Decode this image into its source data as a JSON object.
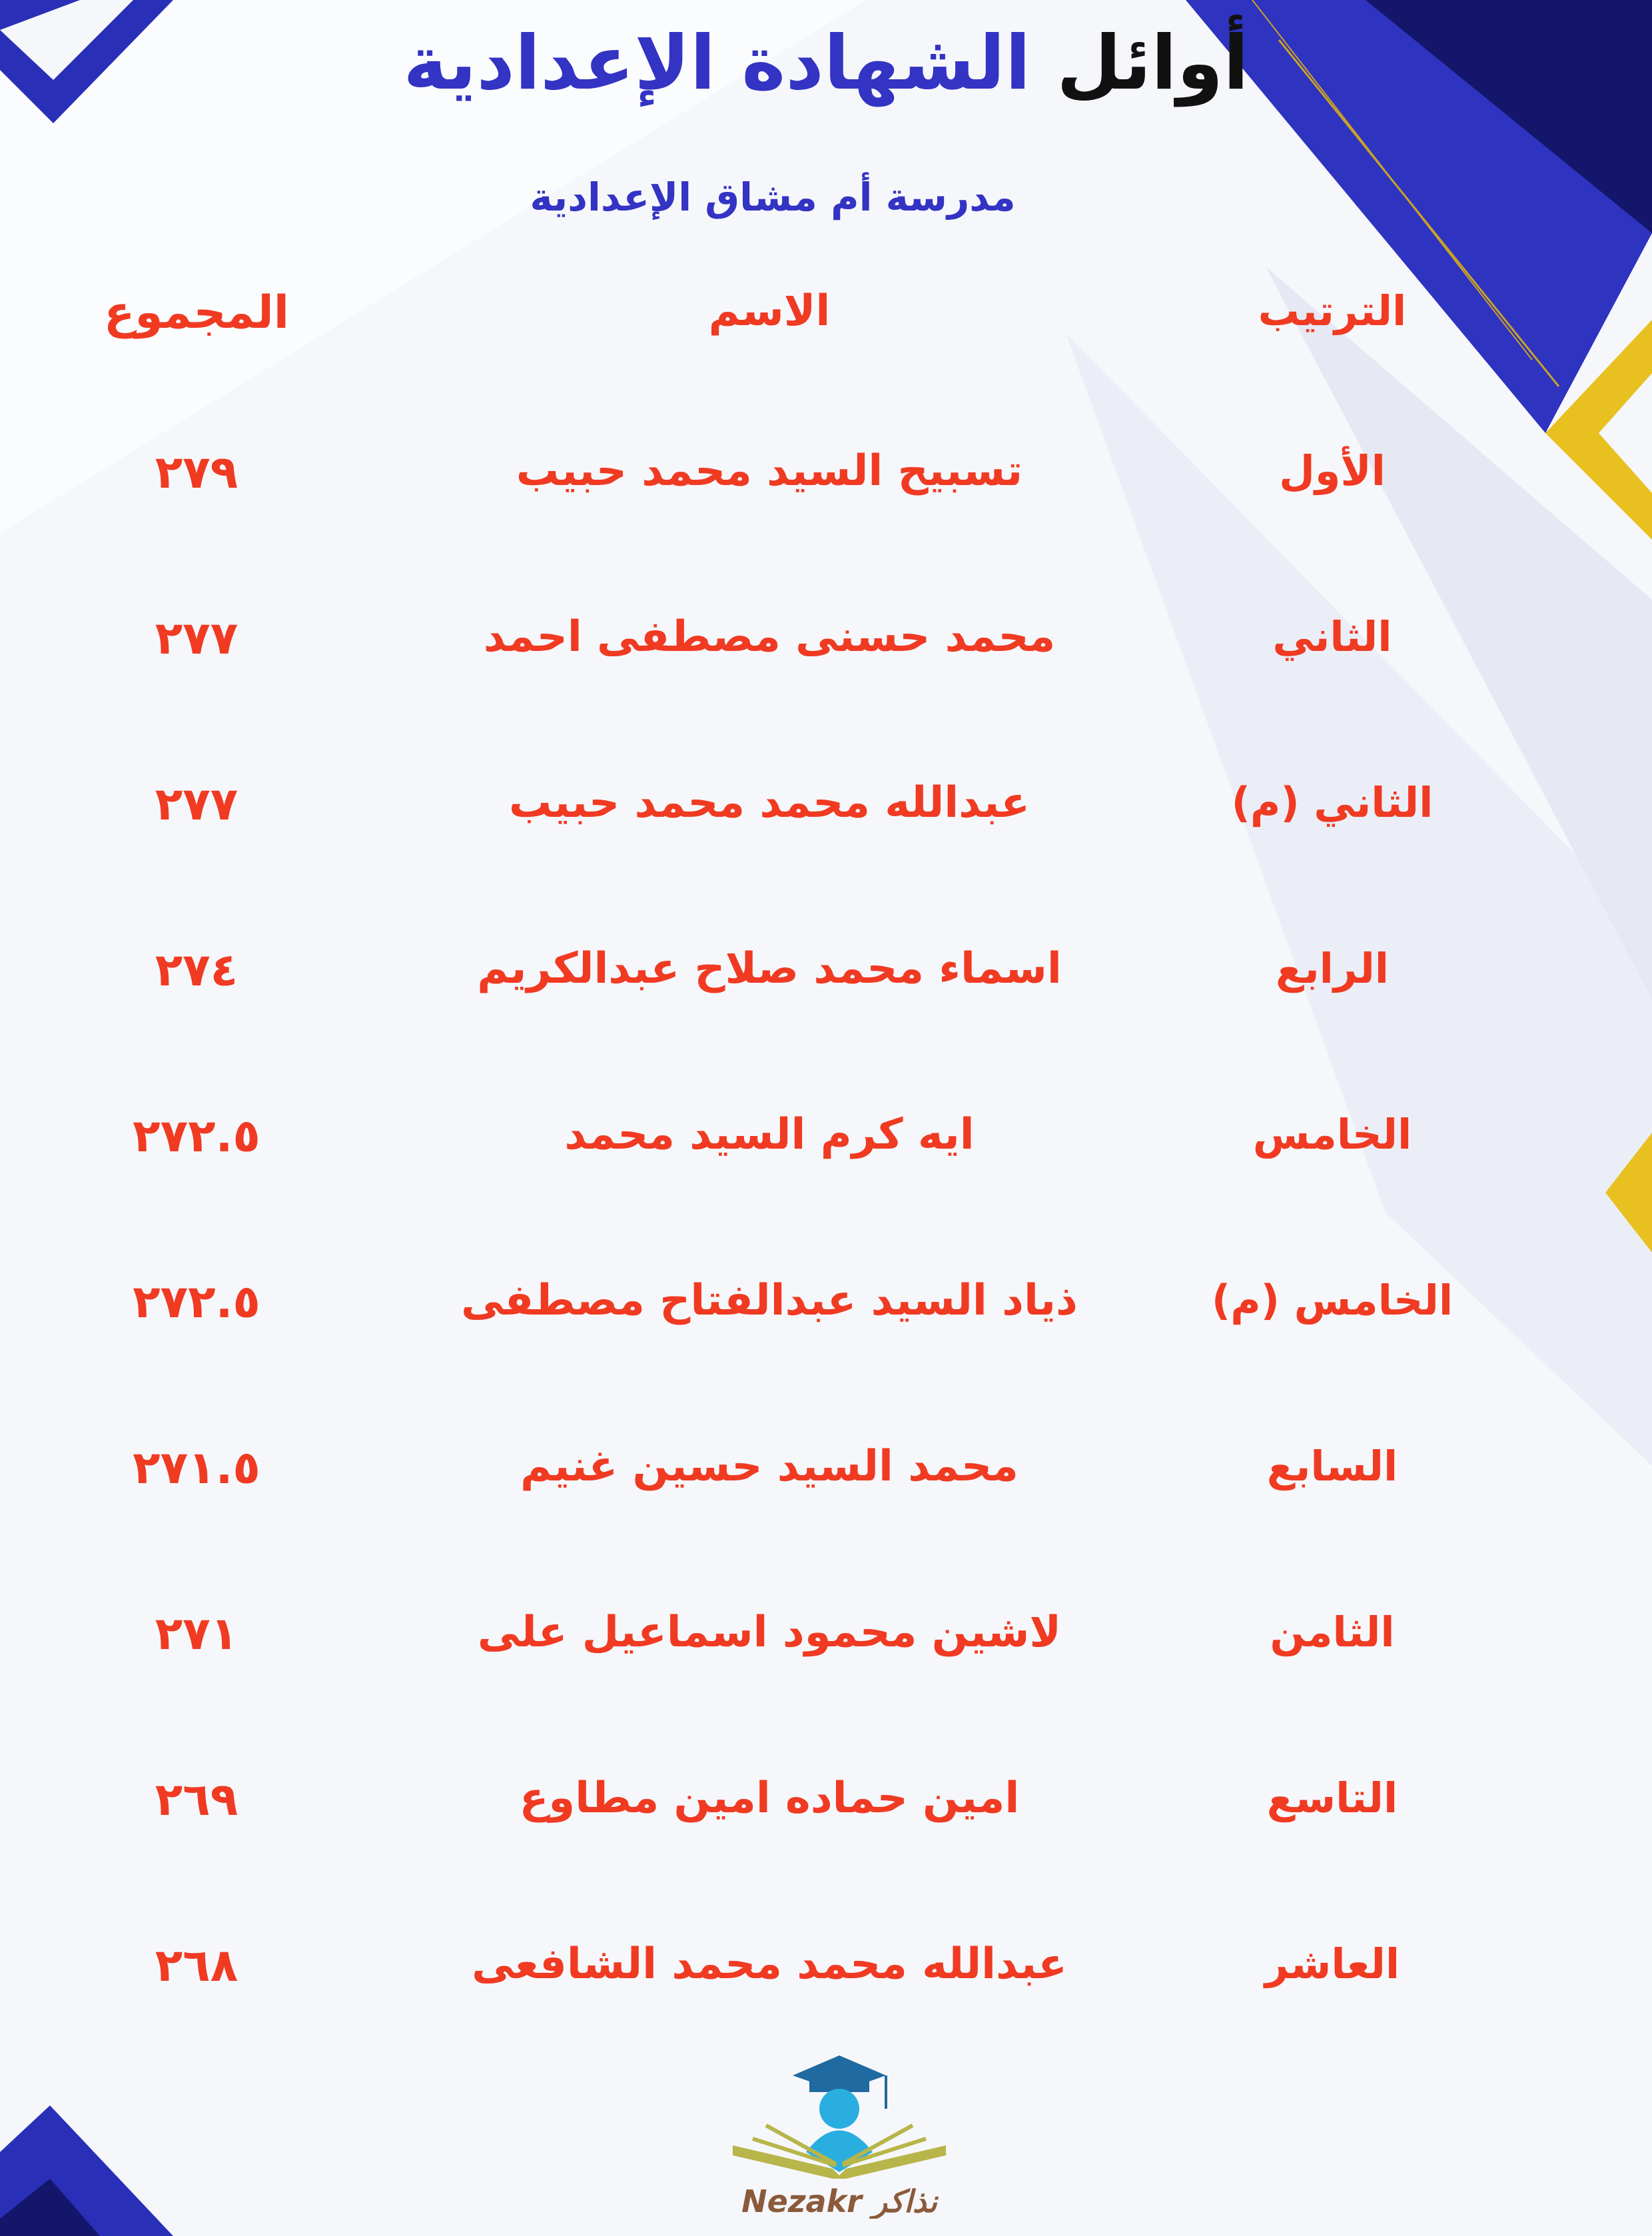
{
  "header": {
    "title_part1": "أوائل",
    "title_part2": "الشهادة الإعدادية",
    "school": "مدرسة أم مشاق الإعدادية"
  },
  "table": {
    "columns": [
      "الترتيب",
      "الاسم",
      "المجموع"
    ],
    "rows": [
      {
        "rank": "الأول",
        "name": "تسبيح السيد محمد حبيب",
        "total": "٢٧٩"
      },
      {
        "rank": "الثاني",
        "name": "محمد حسنى مصطفى احمد",
        "total": "٢٧٧"
      },
      {
        "rank": "الثاني (م)",
        "name": "عبدالله محمد محمد حبيب",
        "total": "٢٧٧"
      },
      {
        "rank": "الرابع",
        "name": "اسماء محمد صلاح عبدالكريم",
        "total": "٢٧٤"
      },
      {
        "rank": "الخامس",
        "name": "ايه كرم السيد محمد",
        "total": "٢٧٢.٥"
      },
      {
        "rank": "الخامس (م)",
        "name": "ذياد السيد عبدالفتاح مصطفى",
        "total": "٢٧٢.٥"
      },
      {
        "rank": "السابع",
        "name": "محمد السيد حسين غنيم",
        "total": "٢٧١.٥"
      },
      {
        "rank": "الثامن",
        "name": "لاشين محمود اسماعيل على",
        "total": "٢٧١"
      },
      {
        "rank": "التاسع",
        "name": "امين حماده امين مطاوع",
        "total": "٢٦٩"
      },
      {
        "rank": "العاشر",
        "name": "عبدالله محمد محمد الشافعى",
        "total": "٢٦٨"
      }
    ]
  },
  "logo": {
    "text": "Nezakr نذاكر"
  },
  "colors": {
    "accent_red": "#f03a22",
    "title_blue": "#3333c4",
    "deco_blue": "#2a2fb8",
    "gold": "#e8c020"
  }
}
